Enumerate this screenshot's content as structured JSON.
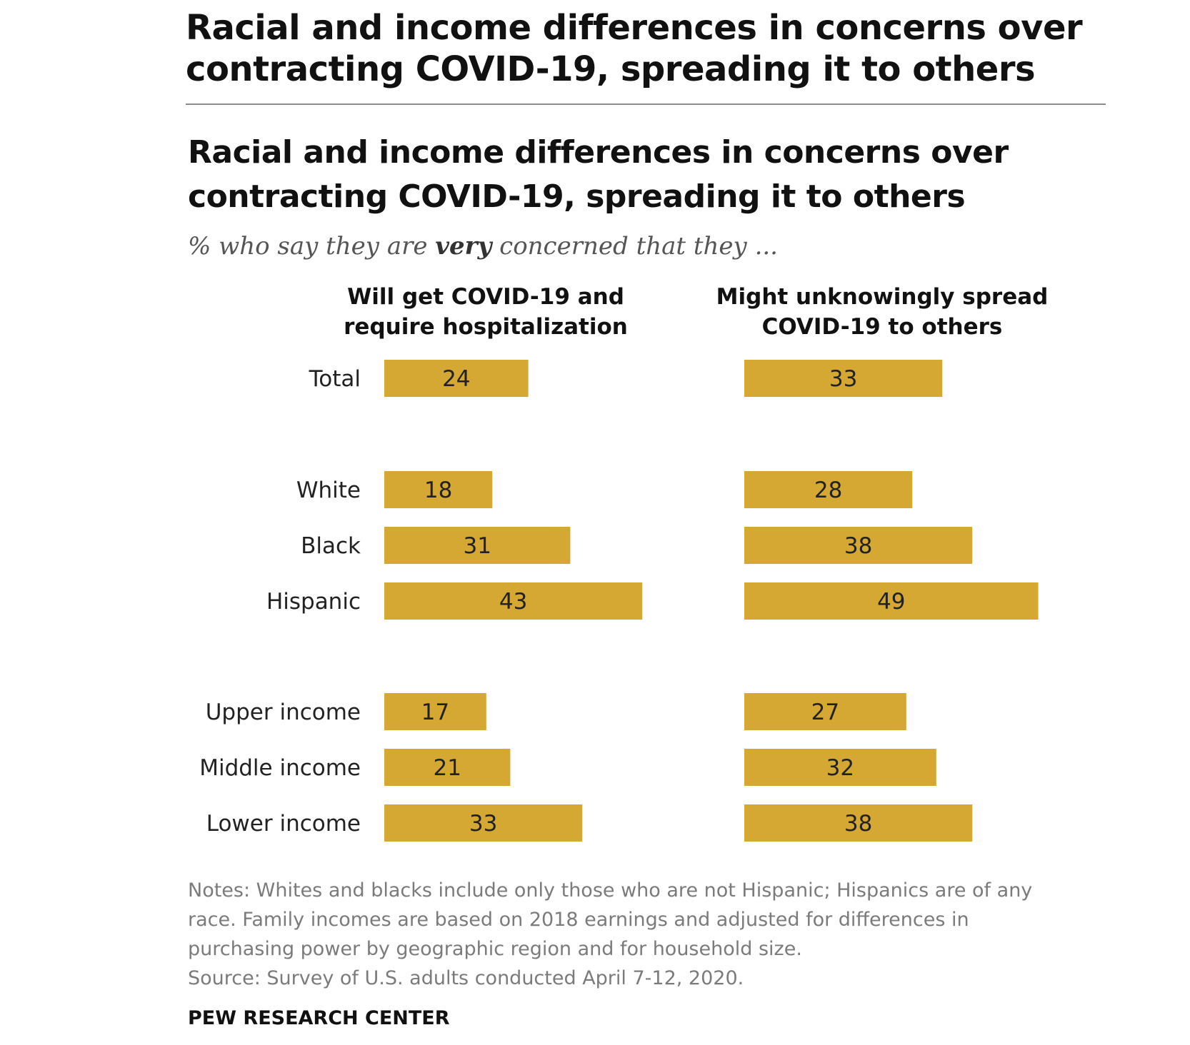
{
  "page_title_line1": "Racial and income differences in concerns over",
  "page_title_line2": "contracting COVID-19, spreading it to others",
  "chart_data": {
    "type": "bar",
    "orientation": "horizontal",
    "title_line1": "Racial and income differences in concerns over",
    "title_line2": "contracting COVID-19, spreading it to others",
    "subtitle_pre": "% who say they are ",
    "subtitle_emph": "very",
    "subtitle_post": " concerned that they ...",
    "categories": [
      "Total",
      "White",
      "Black",
      "Hispanic",
      "Upper income",
      "Middle income",
      "Lower income"
    ],
    "series": [
      {
        "header_line1": "Will get COVID-19 and",
        "header_line2": "require hospitalization",
        "values": [
          24,
          18,
          31,
          43,
          17,
          21,
          33
        ]
      },
      {
        "header_line1": "Might unknowingly spread",
        "header_line2": "COVID-19 to others",
        "values": [
          33,
          28,
          38,
          49,
          27,
          32,
          38
        ]
      }
    ],
    "bar_color": "#d4a833",
    "notes_line1": "Notes: Whites and blacks include only those who are not Hispanic; Hispanics are of any",
    "notes_line2": "race. Family incomes are based on 2018 earnings and adjusted for differences in",
    "notes_line3": "purchasing power by geographic region and for household size.",
    "source": "Source: Survey of U.S. adults conducted April 7-12, 2020.",
    "organization": "PEW RESEARCH CENTER"
  }
}
